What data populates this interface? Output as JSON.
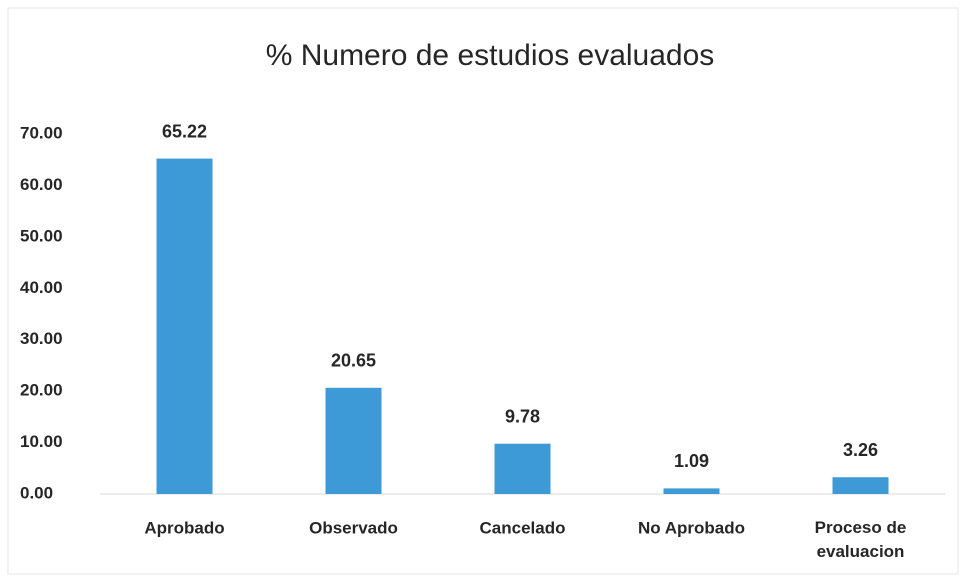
{
  "chart_data": {
    "type": "bar",
    "title": "% Numero de estudios evaluados",
    "categories": [
      "Aprobado",
      "Observado",
      "Cancelado",
      "No Aprobado",
      "Proceso de evaluacion"
    ],
    "values": [
      65.22,
      20.65,
      9.78,
      1.09,
      3.26
    ],
    "color": "#3d9ad6",
    "ylim": [
      0,
      70
    ],
    "yticks": [
      {
        "value": 0,
        "label": "0.00"
      },
      {
        "value": 10,
        "label": "10.00"
      },
      {
        "value": 20,
        "label": "20.00"
      },
      {
        "value": 30,
        "label": "30.00"
      },
      {
        "value": 40,
        "label": "40.00"
      },
      {
        "value": 50,
        "label": "50.00"
      },
      {
        "value": 60,
        "label": "60.00"
      },
      {
        "value": 70,
        "label": "70.00"
      }
    ],
    "grid": false
  }
}
